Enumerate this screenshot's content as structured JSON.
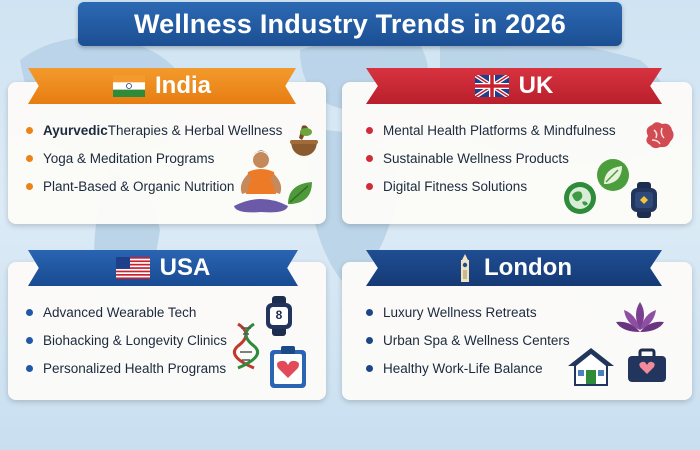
{
  "title": "Wellness Industry Trends in 2026",
  "colors": {
    "india": "#ea8418",
    "uk": "#d02c37",
    "usa": "#2059a7",
    "london": "#1c4685",
    "title_banner": "#2464ab"
  },
  "india": {
    "label": "India",
    "flag_icon": "india-flag-icon",
    "items": [
      {
        "bold": "Ayurvedic",
        "text": " Therapies & Herbal Wellness"
      },
      {
        "bold": "",
        "text": "Yoga & Meditation Programs"
      },
      {
        "bold": "",
        "text": "Plant-Based & Organic Nutrition"
      }
    ],
    "icons": [
      "mortar-pestle-icon",
      "meditating-person-icon",
      "leaf-icon"
    ]
  },
  "uk": {
    "label": "UK",
    "flag_icon": "uk-flag-icon",
    "items": [
      "Mental Health Platforms & Mindfulness",
      "Sustainable Wellness Products",
      "Digital Fitness Solutions"
    ],
    "icons": [
      "brain-icon",
      "eco-globe-icon",
      "leaf-badge-icon",
      "smartwatch-icon"
    ]
  },
  "usa": {
    "label": "USA",
    "flag_icon": "usa-flag-icon",
    "items": [
      "Advanced Wearable Tech",
      "Biohacking & Longevity Clinics",
      "Personalized Health Programs"
    ],
    "watch_text": "8",
    "icons": [
      "smartwatch-icon",
      "dna-icon",
      "heart-clipboard-icon"
    ]
  },
  "london": {
    "label": "London",
    "flag_icon": "big-ben-icon",
    "items": [
      "Luxury Wellness Retreats",
      "Urban Spa & Wellness Centers",
      "Healthy Work-Life Balance"
    ],
    "icons": [
      "lotus-icon",
      "house-icon",
      "briefcase-heart-icon"
    ]
  }
}
